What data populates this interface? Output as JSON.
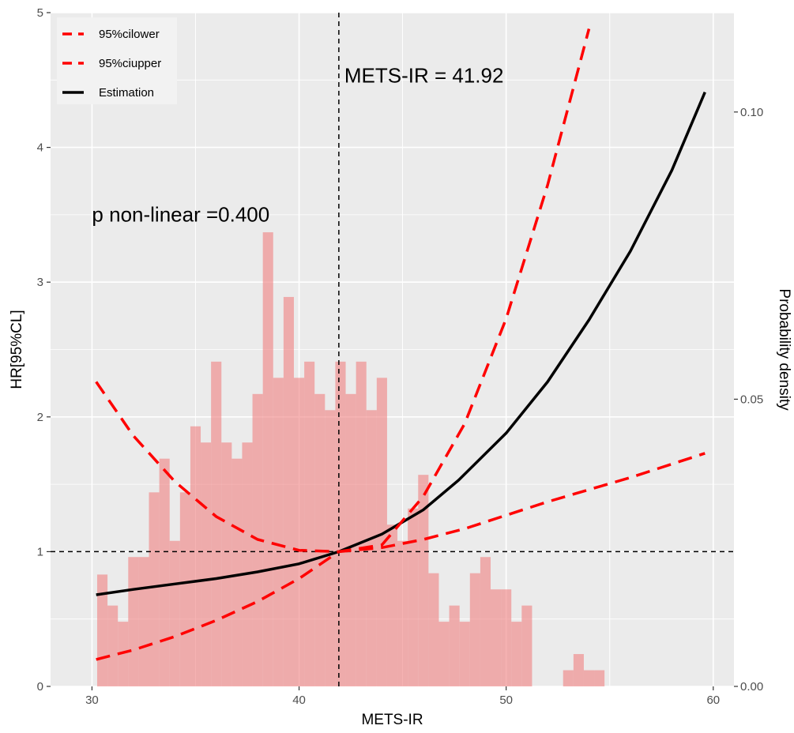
{
  "chart_data": {
    "type": "line",
    "xlabel": "METS-IR",
    "ylabel": "HR[95%CL]",
    "y2label": "Probability density",
    "xlim": [
      28,
      61
    ],
    "ylim": [
      0,
      5
    ],
    "y2lim": [
      0,
      0.1173
    ],
    "x_ticks": [
      30,
      40,
      50,
      60
    ],
    "y_ticks": [
      0,
      1,
      2,
      3,
      4,
      5
    ],
    "y2_ticks": [
      0.0,
      0.05,
      0.1
    ],
    "y2_tick_labels": [
      "0.00",
      "0.05",
      "0.10"
    ],
    "grid": true,
    "legend_position": "top-left",
    "colors": {
      "panel": "#ebebeb",
      "grid": "#ffffff",
      "ci": "#ff0000",
      "estimate": "#000000",
      "histogram": "#f08080"
    },
    "annotations": {
      "cutpoint": "METS-IR = 41.92",
      "p_nonlinear": "p non-linear =0.400"
    },
    "reference_lines": {
      "x": 41.92,
      "y": 1
    },
    "legend": [
      {
        "name": "95%cilower",
        "style": "dashed",
        "color": "#ff0000"
      },
      {
        "name": "95%ciupper",
        "style": "dashed",
        "color": "#ff0000"
      },
      {
        "name": "Estimation",
        "style": "solid",
        "color": "#000000"
      }
    ],
    "series": [
      {
        "name": "Estimation",
        "x": [
          30.2,
          32,
          34,
          36,
          38,
          40,
          41.92,
          44,
          46,
          47.7,
          50,
          52,
          54,
          56,
          58,
          59.6
        ],
        "y": [
          0.68,
          0.72,
          0.76,
          0.8,
          0.85,
          0.91,
          1.0,
          1.13,
          1.31,
          1.53,
          1.88,
          2.26,
          2.72,
          3.23,
          3.83,
          4.41
        ]
      },
      {
        "name": "95%ciupper",
        "x": [
          30.2,
          32,
          34,
          36,
          38,
          40,
          41.92,
          44,
          46,
          48,
          50,
          52,
          54
        ],
        "y": [
          2.26,
          1.86,
          1.52,
          1.26,
          1.09,
          1.01,
          1.0,
          1.05,
          1.41,
          1.95,
          2.73,
          3.72,
          4.88
        ]
      },
      {
        "name": "95%cilower",
        "x": [
          30.2,
          32,
          34,
          36,
          38,
          40,
          41.92,
          44,
          46,
          48,
          50,
          52,
          54,
          56,
          58,
          59.6
        ],
        "y": [
          0.2,
          0.27,
          0.37,
          0.49,
          0.63,
          0.8,
          1.0,
          1.03,
          1.09,
          1.17,
          1.27,
          1.37,
          1.46,
          1.55,
          1.65,
          1.73
        ]
      }
    ],
    "histogram": {
      "bin_width": 0.5,
      "bins_start": [
        30.25,
        30.75,
        31.25,
        31.75,
        32.25,
        32.75,
        33.25,
        33.75,
        34.25,
        34.75,
        35.25,
        35.75,
        36.25,
        36.75,
        37.25,
        37.75,
        38.25,
        38.75,
        39.25,
        39.75,
        40.25,
        40.75,
        41.25,
        41.75,
        42.25,
        42.75,
        43.25,
        43.75,
        44.25,
        44.75,
        45.25,
        45.75,
        46.25,
        46.75,
        47.25,
        47.75,
        48.25,
        48.75,
        49.25,
        49.75,
        50.25,
        50.75,
        51.25,
        51.75,
        52.25,
        52.75,
        53.25,
        53.75,
        54.25,
        54.75,
        55.25,
        55.75,
        56.25,
        56.75,
        57.25,
        57.75,
        58.25,
        58.75
      ],
      "density": [
        0.83,
        0.6,
        0.48,
        0.96,
        0.96,
        1.44,
        1.69,
        1.08,
        1.44,
        1.93,
        1.81,
        2.41,
        1.81,
        1.69,
        1.81,
        2.17,
        3.37,
        2.29,
        2.89,
        2.29,
        2.41,
        2.17,
        2.05,
        2.41,
        2.17,
        2.41,
        2.05,
        2.29,
        1.2,
        1.08,
        1.32,
        1.57,
        0.84,
        0.48,
        0.6,
        0.48,
        0.84,
        0.96,
        0.72,
        0.72,
        0.48,
        0.6,
        0,
        0,
        0,
        0.12,
        0.24,
        0.12,
        0.12,
        0,
        0,
        0,
        0,
        0,
        0,
        0,
        0,
        0
      ],
      "density_scale_note": ""
    }
  }
}
